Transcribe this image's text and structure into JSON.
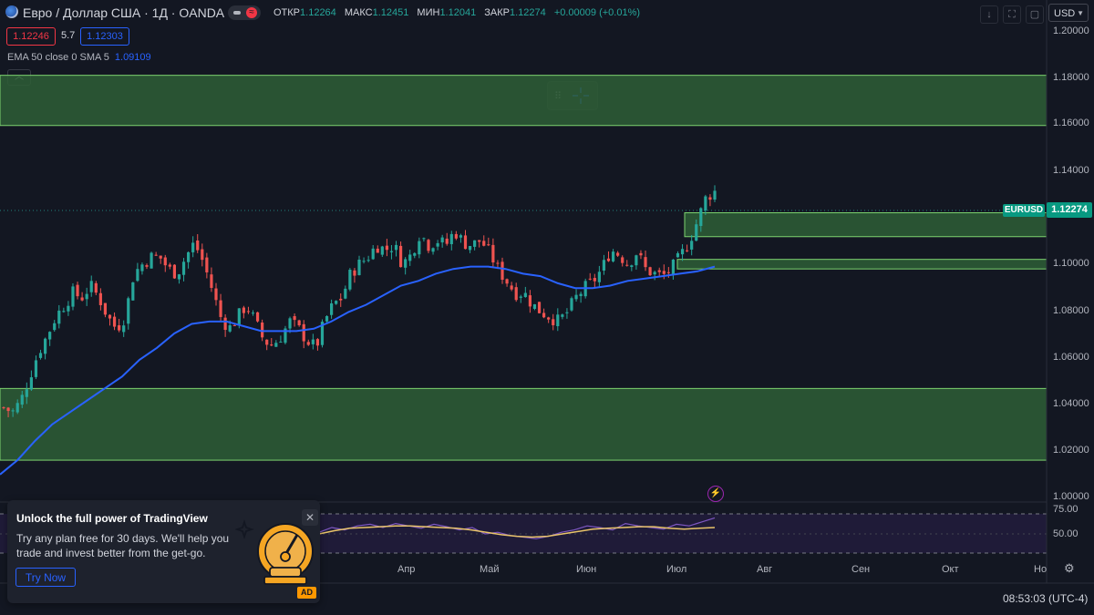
{
  "header": {
    "symbol_title": "Евро / Доллар США · 1Д · OANDA",
    "ohlc": [
      {
        "key": "ОТКР",
        "value": "1.12264"
      },
      {
        "key": "МАКС",
        "value": "1.12451"
      },
      {
        "key": "МИН",
        "value": "1.12041"
      },
      {
        "key": "ЗАКР",
        "value": "1.12274"
      }
    ],
    "change": "+0.00009 (+0.01%)",
    "sell_price": "1.12246",
    "spread": "5.7",
    "buy_price": "1.12303",
    "indicator_label": "EMA 50 close 0 SMA 5",
    "indicator_value": "1.09109",
    "collapse_icon": "chevron-up-icon"
  },
  "top_right": {
    "currency": "USD",
    "icons": [
      "arrow-down-icon",
      "fullscreen-icon",
      "screenshot-icon"
    ]
  },
  "price_scale": {
    "labels": [
      "1.20000",
      "1.18000",
      "1.16000",
      "1.14000",
      "1.10000",
      "1.08000",
      "1.06000",
      "1.04000",
      "1.02000",
      "1.00000"
    ],
    "symbol_tag": "EURUSD",
    "last_price": "1.12274"
  },
  "rsi_scale": {
    "labels": [
      "75.00",
      "50.00"
    ]
  },
  "time_axis": {
    "months": [
      "Апр",
      "Май",
      "Июн",
      "Июл",
      "Авг",
      "Сен",
      "Окт",
      "Но"
    ]
  },
  "status": {
    "clock": "08:53:03 (UTC-4)"
  },
  "promo": {
    "title": "Unlock the full power of TradingView",
    "text": "Try any plan free for 30 days. We'll help you trade and invest better from the get-go.",
    "button": "Try Now",
    "badge": "AD"
  },
  "colors": {
    "up": "#26a69a",
    "down": "#ef5350",
    "ema": "#2962ff",
    "zone_fill": "#2e5e36",
    "zone_border": "#7dd36f",
    "rsi": "#7e57c2",
    "rsi_ma": "#e9c46a",
    "background": "#131722"
  },
  "chart_data": {
    "type": "candlestick",
    "symbol": "EURUSD",
    "timeframe": "1Д",
    "ylim": [
      0.9925,
      1.2025
    ],
    "zones": [
      {
        "low": 1.15,
        "high": 1.171
      },
      {
        "low": 1.1035,
        "high": 1.1135
      },
      {
        "low": 1.09,
        "high": 1.094
      },
      {
        "low": 1.01,
        "high": 1.04
      }
    ],
    "close_path": [
      1.032,
      1.03,
      1.035,
      1.045,
      1.055,
      1.062,
      1.07,
      1.075,
      1.08,
      1.078,
      1.083,
      1.078,
      1.07,
      1.065,
      1.07,
      1.088,
      1.092,
      1.095,
      1.095,
      1.09,
      1.088,
      1.095,
      1.101,
      1.093,
      1.082,
      1.07,
      1.065,
      1.07,
      1.075,
      1.068,
      1.06,
      1.058,
      1.062,
      1.068,
      1.065,
      1.06,
      1.057,
      1.068,
      1.075,
      1.078,
      1.088,
      1.092,
      1.095,
      1.1,
      1.098,
      1.1,
      1.092,
      1.096,
      1.105,
      1.1,
      1.102,
      1.1,
      1.106,
      1.101,
      1.1,
      1.102,
      1.097,
      1.09,
      1.085,
      1.08,
      1.08,
      1.075,
      1.072,
      1.07,
      1.068,
      1.072,
      1.078,
      1.082,
      1.085,
      1.09,
      1.098,
      1.096,
      1.092,
      1.097,
      1.09,
      1.088,
      1.087,
      1.09,
      1.095,
      1.101,
      1.11,
      1.12,
      1.1227
    ],
    "ema_path": [
      1.004,
      1.01,
      1.018,
      1.025,
      1.03,
      1.035,
      1.04,
      1.045,
      1.052,
      1.057,
      1.063,
      1.067,
      1.068,
      1.068,
      1.066,
      1.064,
      1.064,
      1.064,
      1.065,
      1.068,
      1.072,
      1.075,
      1.079,
      1.083,
      1.085,
      1.088,
      1.09,
      1.091,
      1.091,
      1.09,
      1.088,
      1.087,
      1.084,
      1.082,
      1.082,
      1.083,
      1.085,
      1.086,
      1.087,
      1.088,
      1.089,
      1.091
    ],
    "rsi_path": [
      52,
      58,
      55,
      60,
      62,
      58,
      63,
      60,
      57,
      62,
      59,
      55,
      58,
      50,
      52,
      48,
      46,
      44,
      47,
      52,
      55,
      60,
      58,
      55,
      63,
      60,
      58,
      56,
      62,
      60,
      65,
      70
    ],
    "rsi_ma_path": [
      50,
      54,
      57,
      58,
      59,
      60,
      60,
      59,
      58,
      57,
      55,
      52,
      49,
      47,
      46,
      47,
      50,
      53,
      56,
      57,
      58,
      59,
      59,
      57,
      56,
      57,
      58
    ]
  }
}
